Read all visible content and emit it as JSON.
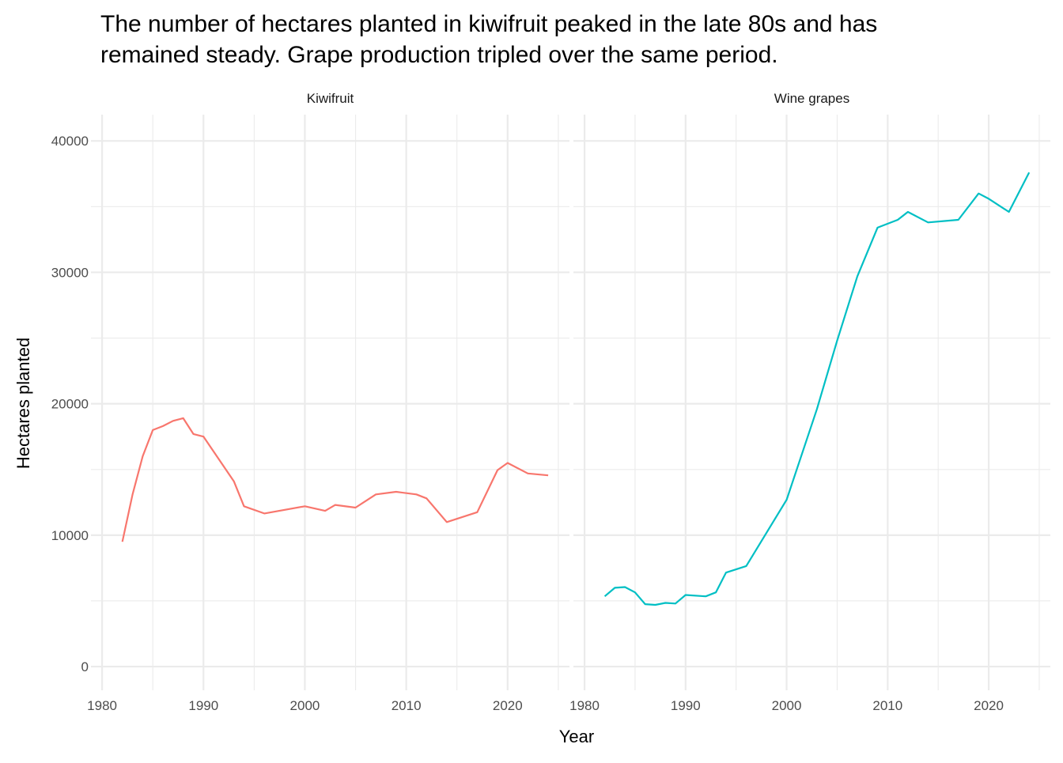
{
  "chart_data": {
    "type": "line",
    "title_lines": [
      "The number of hectares planted in kiwifruit peaked in the late 80s and has",
      "remained steady. Grape production tripled over the same period."
    ],
    "xlabel": "Year",
    "ylabel": "Hectares planted",
    "xlim": [
      1978.9,
      2026.1
    ],
    "ylim": [
      -1800,
      42000
    ],
    "x_ticks": [
      1980,
      1990,
      2000,
      2010,
      2020
    ],
    "y_ticks": [
      0,
      10000,
      20000,
      30000,
      40000
    ],
    "grid": true,
    "legend": "none",
    "panels": [
      {
        "name": "Kiwifruit",
        "color": "#F8766D",
        "x": [
          1982,
          1983,
          1984,
          1985,
          1986,
          1987,
          1988,
          1989,
          1990,
          1993,
          1994,
          1996,
          2000,
          2002,
          2003,
          2005,
          2007,
          2009,
          2011,
          2012,
          2014,
          2017,
          2019,
          2020,
          2022,
          2024
        ],
        "y": [
          9500,
          13100,
          16000,
          18000,
          18300,
          18700,
          18900,
          17700,
          17500,
          14100,
          12200,
          11650,
          12200,
          11850,
          12300,
          12100,
          13100,
          13300,
          13100,
          12800,
          11000,
          11750,
          14950,
          15500,
          14700,
          14550
        ]
      },
      {
        "name": "Wine grapes",
        "color": "#00BFC4",
        "x": [
          1982,
          1983,
          1984,
          1985,
          1986,
          1987,
          1988,
          1989,
          1990,
          1992,
          1993,
          1994,
          1996,
          2000,
          2003,
          2005,
          2007,
          2009,
          2011,
          2012,
          2014,
          2017,
          2019,
          2020,
          2022,
          2024
        ],
        "y": [
          5350,
          6000,
          6050,
          5650,
          4750,
          4700,
          4850,
          4800,
          5450,
          5350,
          5650,
          7150,
          7650,
          12700,
          19600,
          24800,
          29700,
          33400,
          34000,
          34600,
          33800,
          34000,
          36000,
          35600,
          34600,
          37600
        ]
      }
    ]
  }
}
